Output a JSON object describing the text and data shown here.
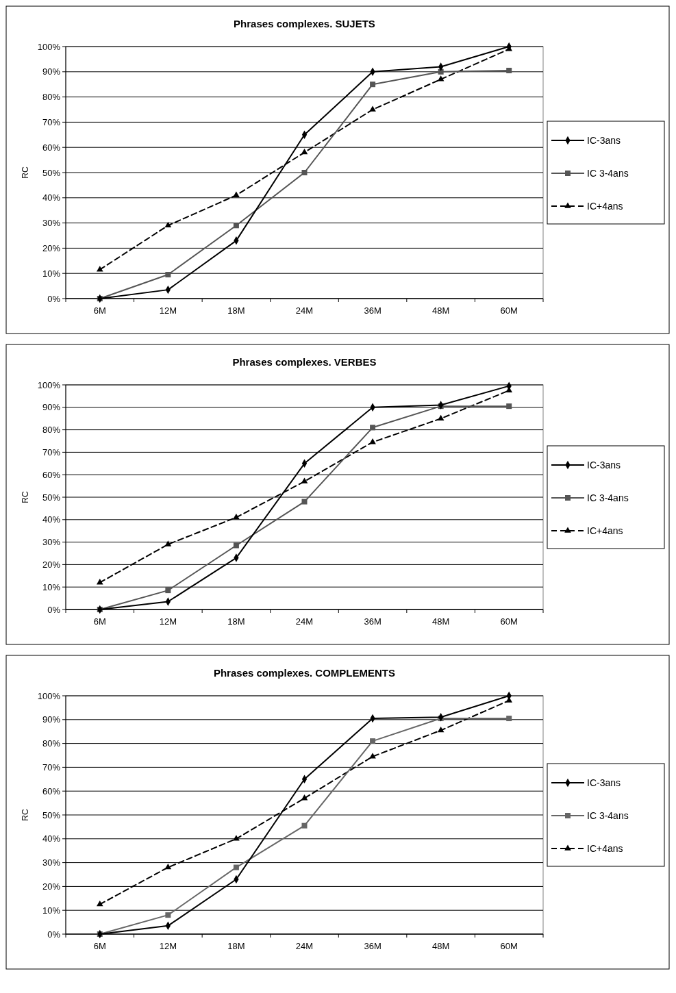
{
  "chart_data": [
    {
      "type": "line",
      "title": "Phrases complexes. SUJETS",
      "ylabel": "RC",
      "categories": [
        "6M",
        "12M",
        "18M",
        "24M",
        "36M",
        "48M",
        "60M"
      ],
      "ylim": [
        0,
        100
      ],
      "yticks": [
        {
          "value": 0,
          "label": "0%"
        },
        {
          "value": 10,
          "label": "10%"
        },
        {
          "value": 20,
          "label": "20%"
        },
        {
          "value": 30,
          "label": "30%"
        },
        {
          "value": 40,
          "label": "40%"
        },
        {
          "value": 50,
          "label": "50%"
        },
        {
          "value": 60,
          "label": "60%"
        },
        {
          "value": 70,
          "label": "70%"
        },
        {
          "value": 80,
          "label": "80%"
        },
        {
          "value": 90,
          "label": "90%"
        },
        {
          "value": 100,
          "label": "100%"
        }
      ],
      "grid": "y",
      "legend": "right",
      "series": [
        {
          "name": "IC-3ans",
          "color": "#000000",
          "marker": "diamond",
          "line_style": "solid",
          "values": [
            0,
            3.5,
            23,
            65,
            90,
            92,
            100
          ]
        },
        {
          "name": "IC 3-4ans",
          "color": "#555555",
          "marker": "square",
          "line_style": "solid",
          "values": [
            0,
            9.5,
            29,
            50,
            85,
            90,
            90.5
          ]
        },
        {
          "name": "IC+4ans",
          "color": "#000000",
          "marker": "triangle",
          "line_style": "dashed",
          "values": [
            11.5,
            29,
            41,
            58,
            75,
            87,
            99
          ]
        }
      ]
    },
    {
      "type": "line",
      "title": "Phrases complexes. VERBES",
      "ylabel": "RC",
      "categories": [
        "6M",
        "12M",
        "18M",
        "24M",
        "36M",
        "48M",
        "60M"
      ],
      "ylim": [
        0,
        100
      ],
      "yticks": [
        {
          "value": 0,
          "label": "0%"
        },
        {
          "value": 10,
          "label": "10%"
        },
        {
          "value": 20,
          "label": "20%"
        },
        {
          "value": 30,
          "label": "30%"
        },
        {
          "value": 40,
          "label": "40%"
        },
        {
          "value": 50,
          "label": "50%"
        },
        {
          "value": 60,
          "label": "60%"
        },
        {
          "value": 70,
          "label": "70%"
        },
        {
          "value": 80,
          "label": "80%"
        },
        {
          "value": 90,
          "label": "90%"
        },
        {
          "value": 100,
          "label": "100%"
        }
      ],
      "grid": "y",
      "legend": "right",
      "series": [
        {
          "name": "IC-3ans",
          "color": "#000000",
          "marker": "diamond",
          "line_style": "solid",
          "values": [
            0,
            3.5,
            23,
            65,
            90,
            91,
            99.5
          ]
        },
        {
          "name": "IC 3-4ans",
          "color": "#555555",
          "marker": "square",
          "line_style": "solid",
          "values": [
            0,
            8.5,
            28.5,
            48,
            81,
            90.5,
            90.5
          ]
        },
        {
          "name": "IC+4ans",
          "color": "#000000",
          "marker": "triangle",
          "line_style": "dashed",
          "values": [
            12,
            29,
            41,
            57,
            74.5,
            85,
            97.5
          ]
        }
      ]
    },
    {
      "type": "line",
      "title": "Phrases complexes. COMPLEMENTS",
      "ylabel": "RC",
      "categories": [
        "6M",
        "12M",
        "18M",
        "24M",
        "36M",
        "48M",
        "60M"
      ],
      "ylim": [
        0,
        100
      ],
      "yticks": [
        {
          "value": 0,
          "label": "0%"
        },
        {
          "value": 10,
          "label": "10%"
        },
        {
          "value": 20,
          "label": "20%"
        },
        {
          "value": 30,
          "label": "30%"
        },
        {
          "value": 40,
          "label": "40%"
        },
        {
          "value": 50,
          "label": "50%"
        },
        {
          "value": 60,
          "label": "60%"
        },
        {
          "value": 70,
          "label": "70%"
        },
        {
          "value": 80,
          "label": "80%"
        },
        {
          "value": 90,
          "label": "90%"
        },
        {
          "value": 100,
          "label": "100%"
        }
      ],
      "grid": "y",
      "legend": "right",
      "series": [
        {
          "name": "IC-3ans",
          "color": "#000000",
          "marker": "diamond",
          "line_style": "solid",
          "values": [
            0,
            3.5,
            23,
            65,
            90.5,
            91,
            100
          ]
        },
        {
          "name": "IC 3-4ans",
          "color": "#666666",
          "marker": "square",
          "line_style": "solid",
          "values": [
            0,
            8,
            28,
            45.5,
            81,
            90.5,
            90.5
          ]
        },
        {
          "name": "IC+4ans",
          "color": "#000000",
          "marker": "triangle",
          "line_style": "dashed",
          "values": [
            12.5,
            28,
            40,
            57,
            74.5,
            85.5,
            98
          ]
        }
      ]
    }
  ]
}
